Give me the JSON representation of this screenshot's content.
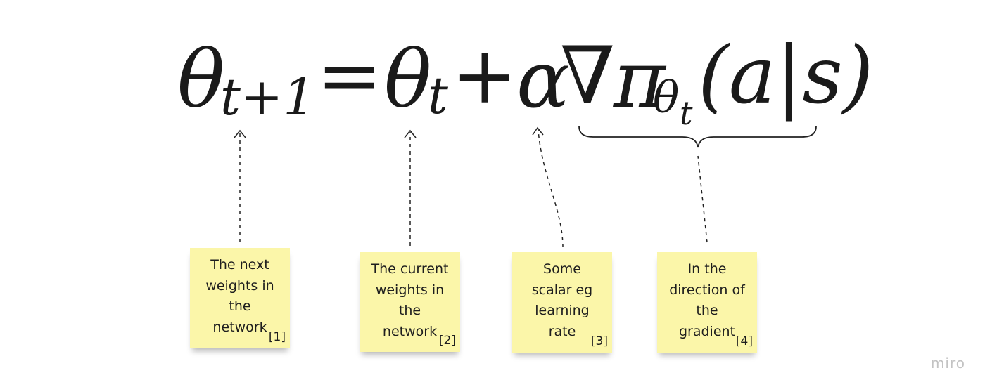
{
  "formula": {
    "theta": "θ",
    "sub_t_plus_1": "t+1",
    "equals": "=",
    "sub_t": "t",
    "plus": "+",
    "alpha": "α",
    "nabla": "∇",
    "pi": "π",
    "sub_theta": "θ",
    "sub_sub_t": "t",
    "args": "(a|s)"
  },
  "notes": [
    {
      "text": "The next\nweights in\nthe\nnetwork",
      "ref": "[1]"
    },
    {
      "text": "The current\nweights in\nthe\nnetwork",
      "ref": "[2]"
    },
    {
      "text": "Some\nscalar eg\nlearning\nrate",
      "ref": "[3]"
    },
    {
      "text": "In the\ndirection of\nthe\ngradient",
      "ref": "[4]"
    }
  ],
  "watermark": "miro",
  "colors": {
    "note_background": "#fbf6a9",
    "text": "#1a1a1a",
    "watermark": "#c3c3c3"
  }
}
